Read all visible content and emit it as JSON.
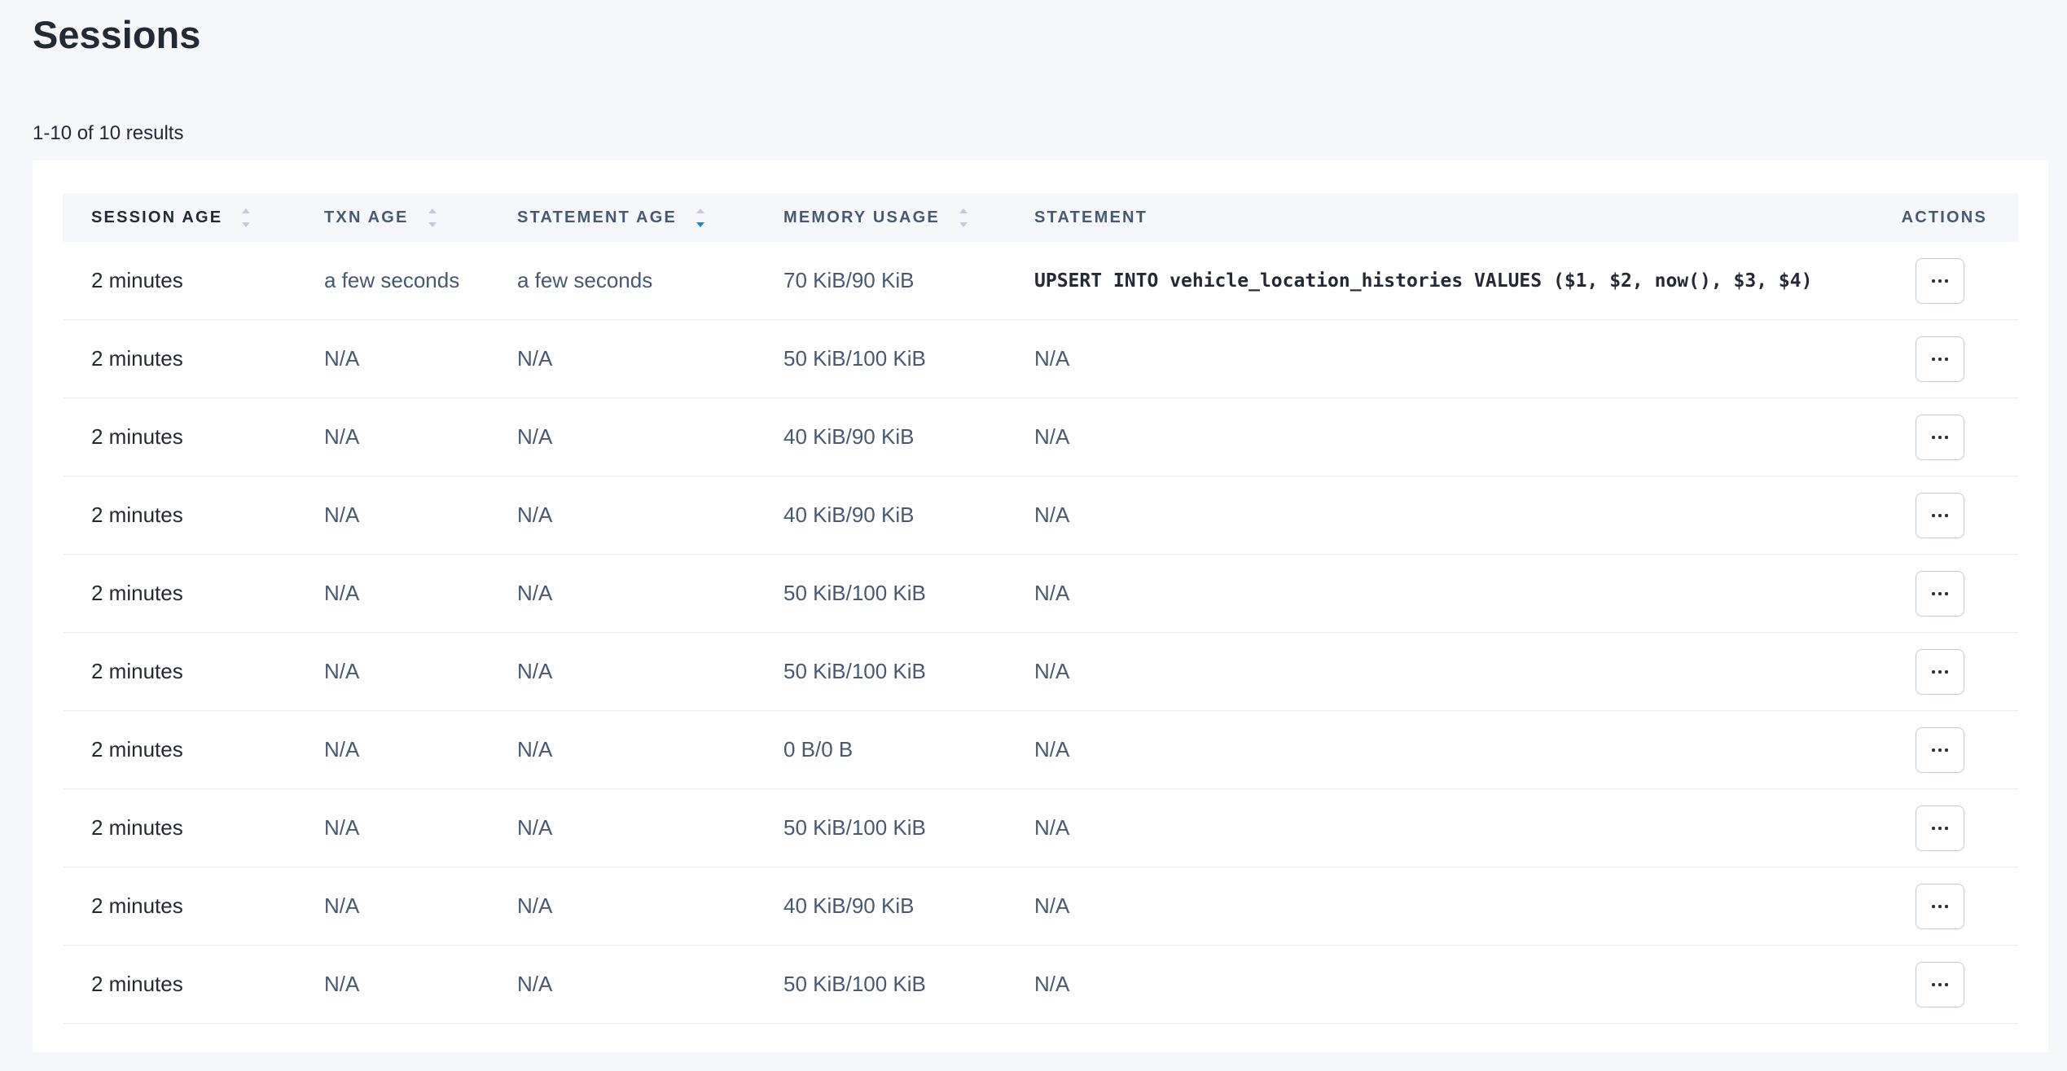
{
  "page": {
    "title": "Sessions",
    "results_summary": "1-10 of 10 results"
  },
  "colors": {
    "page_background": "#f5f7fa",
    "card_background": "#ffffff",
    "header_row_background": "#f5f7fa",
    "header_text": "#475872",
    "primary_text": "#242a35",
    "secondary_text": "#475872",
    "row_border": "#e7ecf3",
    "sort_icon_inactive": "#c5cbde",
    "sort_icon_active": "#0788ff",
    "action_button_border": "#c3c9dc"
  },
  "table": {
    "columns": [
      {
        "key": "session-age",
        "label": "SESSION AGE",
        "sortable": true,
        "sort": null
      },
      {
        "key": "txn-age",
        "label": "TXN AGE",
        "sortable": true,
        "sort": null
      },
      {
        "key": "statement-age",
        "label": "STATEMENT AGE",
        "sortable": true,
        "sort": "desc"
      },
      {
        "key": "memory-usage",
        "label": "MEMORY USAGE",
        "sortable": true,
        "sort": null
      },
      {
        "key": "statement",
        "label": "STATEMENT",
        "sortable": false,
        "sort": null
      },
      {
        "key": "actions",
        "label": "ACTIONS",
        "sortable": false,
        "sort": null
      }
    ],
    "actions_icon": "ellipsis",
    "rows": [
      {
        "session_age": "2 minutes",
        "txn_age": "a few seconds",
        "statement_age": "a few seconds",
        "memory_usage": "70 KiB/90 KiB",
        "statement": "UPSERT INTO vehicle_location_histories VALUES ($1, $2, now(), $3, $4)",
        "statement_is_sql": true
      },
      {
        "session_age": "2 minutes",
        "txn_age": "N/A",
        "statement_age": "N/A",
        "memory_usage": "50 KiB/100 KiB",
        "statement": "N/A",
        "statement_is_sql": false
      },
      {
        "session_age": "2 minutes",
        "txn_age": "N/A",
        "statement_age": "N/A",
        "memory_usage": "40 KiB/90 KiB",
        "statement": "N/A",
        "statement_is_sql": false
      },
      {
        "session_age": "2 minutes",
        "txn_age": "N/A",
        "statement_age": "N/A",
        "memory_usage": "40 KiB/90 KiB",
        "statement": "N/A",
        "statement_is_sql": false
      },
      {
        "session_age": "2 minutes",
        "txn_age": "N/A",
        "statement_age": "N/A",
        "memory_usage": "50 KiB/100 KiB",
        "statement": "N/A",
        "statement_is_sql": false
      },
      {
        "session_age": "2 minutes",
        "txn_age": "N/A",
        "statement_age": "N/A",
        "memory_usage": "50 KiB/100 KiB",
        "statement": "N/A",
        "statement_is_sql": false
      },
      {
        "session_age": "2 minutes",
        "txn_age": "N/A",
        "statement_age": "N/A",
        "memory_usage": "0 B/0 B",
        "statement": "N/A",
        "statement_is_sql": false
      },
      {
        "session_age": "2 minutes",
        "txn_age": "N/A",
        "statement_age": "N/A",
        "memory_usage": "50 KiB/100 KiB",
        "statement": "N/A",
        "statement_is_sql": false
      },
      {
        "session_age": "2 minutes",
        "txn_age": "N/A",
        "statement_age": "N/A",
        "memory_usage": "40 KiB/90 KiB",
        "statement": "N/A",
        "statement_is_sql": false
      },
      {
        "session_age": "2 minutes",
        "txn_age": "N/A",
        "statement_age": "N/A",
        "memory_usage": "50 KiB/100 KiB",
        "statement": "N/A",
        "statement_is_sql": false
      }
    ]
  }
}
